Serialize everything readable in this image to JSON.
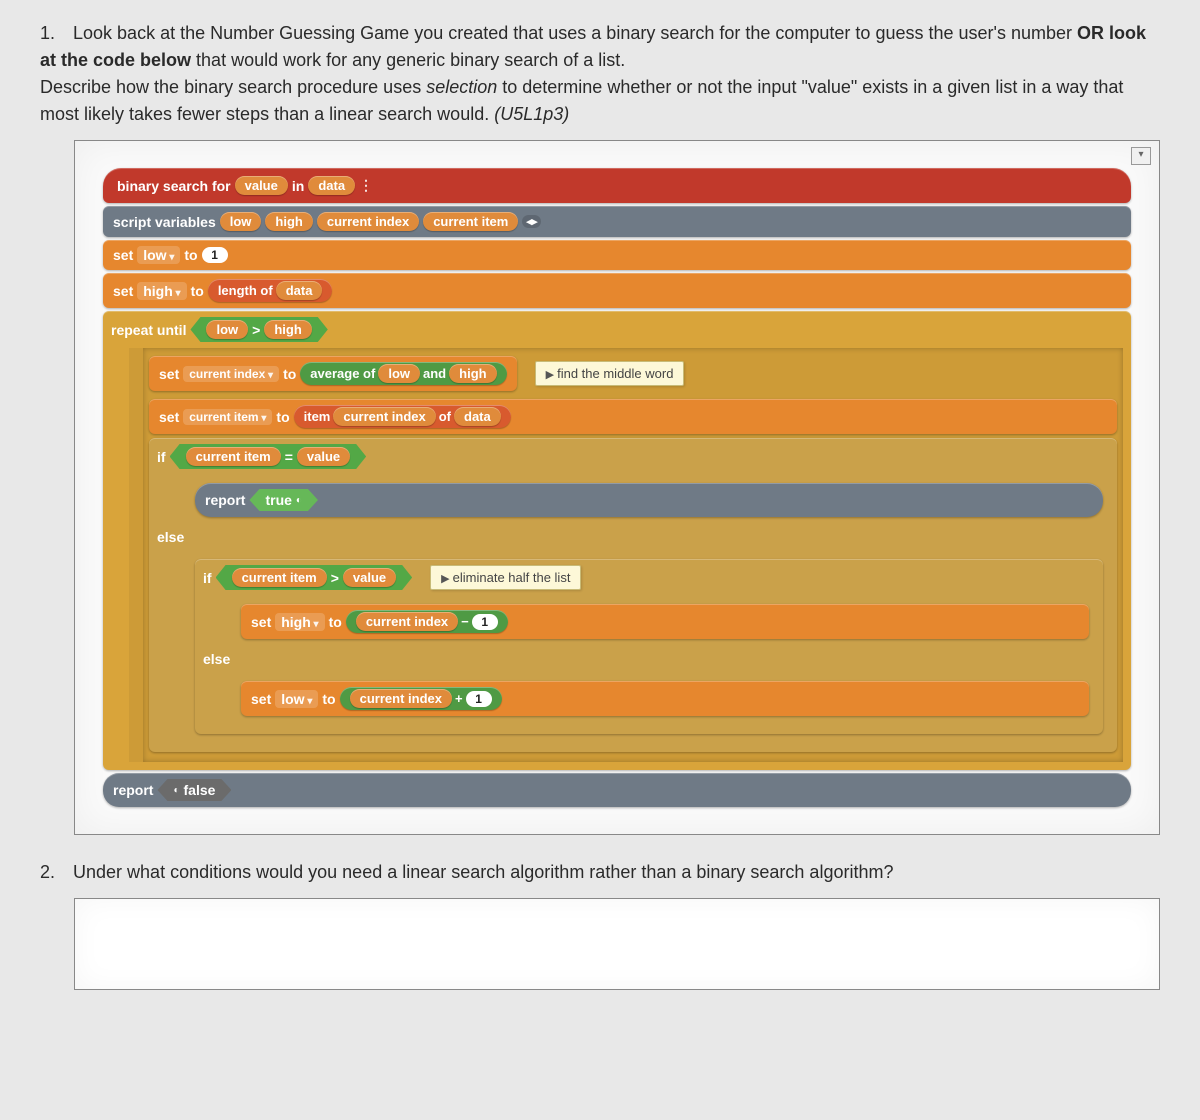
{
  "q1": {
    "number": "1.",
    "line1a": "Look back at the Number Guessing Game you created that uses a binary search for the computer to guess the user's number ",
    "line1bold": "OR look at the code below",
    "line1b": " that would work for any generic binary search of a list.",
    "line2a": "Describe how the binary search procedure uses ",
    "line2italic": "selection",
    "line2b": " to determine whether or not the input \"value\" exists in a given list in a way that most likely takes fewer steps than a linear search would. ",
    "line2ref": "(U5L1p3)"
  },
  "q2": {
    "number": "2.",
    "text": "Under what conditions would you need a linear search algorithm rather than a binary search algorithm?"
  },
  "code": {
    "hat_a": "binary search for",
    "hat_var_value": "value",
    "hat_b": "in",
    "hat_var_data": "data",
    "scriptvars_label": "script variables",
    "var_low": "low",
    "var_high": "high",
    "var_ci": "current index",
    "var_citem": "current item",
    "set": "set",
    "to": "to",
    "one": "1",
    "length_of": "length of",
    "data": "data",
    "repeat_until": "repeat until",
    "gt": ">",
    "average_of": "average of",
    "and": "and",
    "item": "item",
    "of": "of",
    "if": "if",
    "else": "else",
    "eq": "=",
    "report": "report",
    "true": "true",
    "false": "false",
    "minus": "−",
    "plus": "+",
    "comment_mid": "find the middle word",
    "comment_half": "eliminate half the list"
  },
  "colors": {
    "red": "#c1392b",
    "grey": "#6f7a86",
    "orange": "#e6872e",
    "yellow": "#d9a43a",
    "green": "#53a846",
    "list": "#d85a2e",
    "comment_bg": "#fdf8d8"
  }
}
